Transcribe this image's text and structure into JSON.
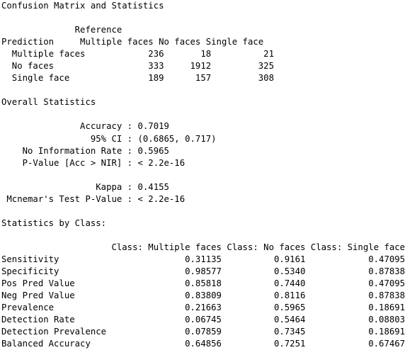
{
  "output": {
    "lines": [
      "Confusion Matrix and Statistics",
      "",
      "              Reference",
      "Prediction     Multiple faces No faces Single face",
      "  Multiple faces            236       18          21",
      "  No faces                  333     1912         325",
      "  Single face               189      157         308",
      "",
      "Overall Statistics",
      "",
      "               Accuracy : 0.7019",
      "                 95% CI : (0.6865, 0.717)",
      "    No Information Rate : 0.5965",
      "    P-Value [Acc > NIR] : < 2.2e-16",
      "",
      "                  Kappa : 0.4155",
      " Mcnemar's Test P-Value : < 2.2e-16",
      "",
      "Statistics by Class:",
      "",
      "                     Class: Multiple faces Class: No faces Class: Single face",
      "Sensitivity                        0.31135          0.9161            0.47095",
      "Specificity                        0.98577          0.5340            0.87838",
      "Pos Pred Value                     0.85818          0.7440            0.47095",
      "Neg Pred Value                     0.83809          0.8116            0.87838",
      "Prevalence                         0.21663          0.5965            0.18691",
      "Detection Rate                     0.06745          0.5464            0.08803",
      "Detection Prevalence               0.07859          0.7345            0.18691",
      "Balanced Accuracy                  0.64856          0.7251            0.67467"
    ]
  }
}
